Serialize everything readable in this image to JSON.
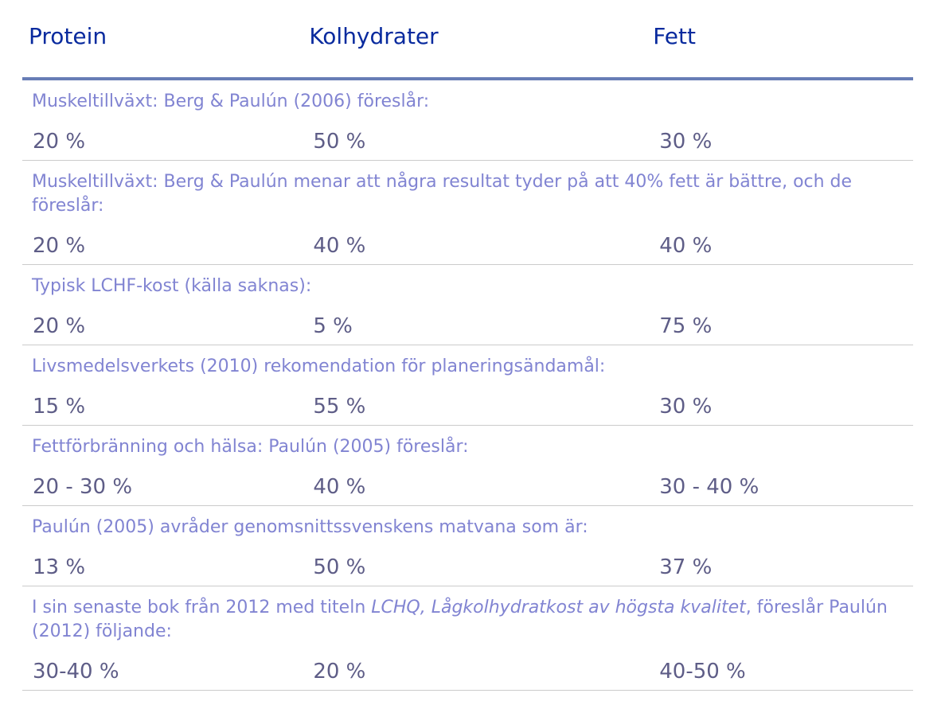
{
  "colors": {
    "header_text": "#082a9e",
    "description_text": "#8184d2",
    "value_text": "#5e5d87",
    "thick_rule": "#687db6",
    "divider": "#cbcbcb",
    "background": "#ffffff"
  },
  "table": {
    "headers": [
      "Protein",
      "Kolhydrater",
      "Fett"
    ],
    "rows": [
      {
        "desc_parts": [
          {
            "text": "Muskeltillväxt: Berg & Paulún (2006) föreslår:",
            "italic": false
          }
        ],
        "values": [
          "20 %",
          "50 %",
          "30 %"
        ]
      },
      {
        "desc_parts": [
          {
            "text": "Muskeltillväxt: Berg & Paulún menar att några resultat tyder på att 40% fett är bättre, och de föreslår:",
            "italic": false
          }
        ],
        "values": [
          "20 %",
          "40 %",
          "40 %"
        ]
      },
      {
        "desc_parts": [
          {
            "text": "Typisk LCHF-kost (källa saknas):",
            "italic": false
          }
        ],
        "values": [
          "20 %",
          "5 %",
          "75 %"
        ]
      },
      {
        "desc_parts": [
          {
            "text": "Livsmedelsverkets (2010) rekomendation för planeringsändamål:",
            "italic": false
          }
        ],
        "values": [
          "15 %",
          "55 %",
          "30 %"
        ]
      },
      {
        "desc_parts": [
          {
            "text": "Fettförbränning och hälsa: Paulún (2005) föreslår:",
            "italic": false
          }
        ],
        "values": [
          "20 - 30 %",
          "40 %",
          "30 - 40 %"
        ]
      },
      {
        "desc_parts": [
          {
            "text": "Paulún (2005) avråder genomsnittssvenskens matvana som är:",
            "italic": false
          }
        ],
        "values": [
          "13 %",
          "50 %",
          "37 %"
        ]
      },
      {
        "desc_parts": [
          {
            "text": "I sin senaste bok från 2012 med titeln ",
            "italic": false
          },
          {
            "text": "LCHQ, Lågkolhydratkost av högsta kvalitet",
            "italic": true
          },
          {
            "text": ", föreslår Paulún (2012) följande:",
            "italic": false
          }
        ],
        "values": [
          "30-40 %",
          "20 %",
          "40-50 %"
        ]
      }
    ]
  }
}
